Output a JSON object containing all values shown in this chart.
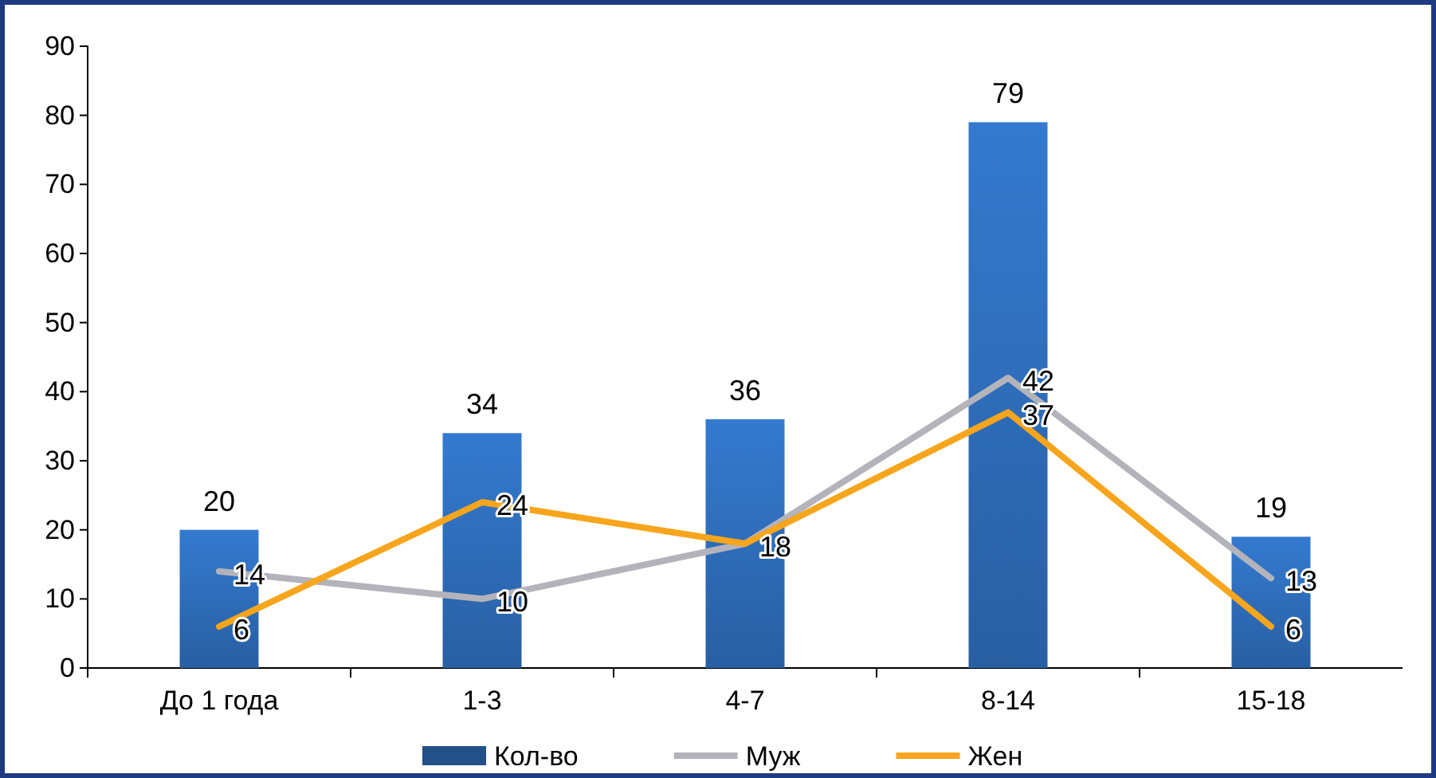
{
  "chart_data": {
    "type": "bar",
    "categories": [
      "До 1 года",
      "1-3",
      "4-7",
      "8-14",
      "15-18"
    ],
    "series": [
      {
        "name": "Кол-во",
        "color": "#2d6ab4",
        "values": [
          20,
          34,
          36,
          79,
          19
        ],
        "value_labels": [
          "20",
          "34",
          "36",
          "79",
          "19"
        ]
      },
      {
        "name": "Муж",
        "type": "line",
        "color": "#b3b3bb",
        "values": [
          14,
          10,
          18,
          42,
          13
        ],
        "value_labels": [
          "14",
          "10",
          null,
          "42",
          "13"
        ]
      },
      {
        "name": "Жен",
        "type": "line",
        "color": "#f7a51c",
        "values": [
          6,
          24,
          18,
          37,
          6
        ],
        "value_labels": [
          "6",
          "24",
          "18",
          "37",
          "6"
        ]
      }
    ],
    "ylim": [
      0,
      90
    ],
    "yticks": [
      0,
      10,
      20,
      30,
      40,
      50,
      60,
      70,
      80,
      90
    ],
    "grid": false,
    "legend": "bottom"
  }
}
